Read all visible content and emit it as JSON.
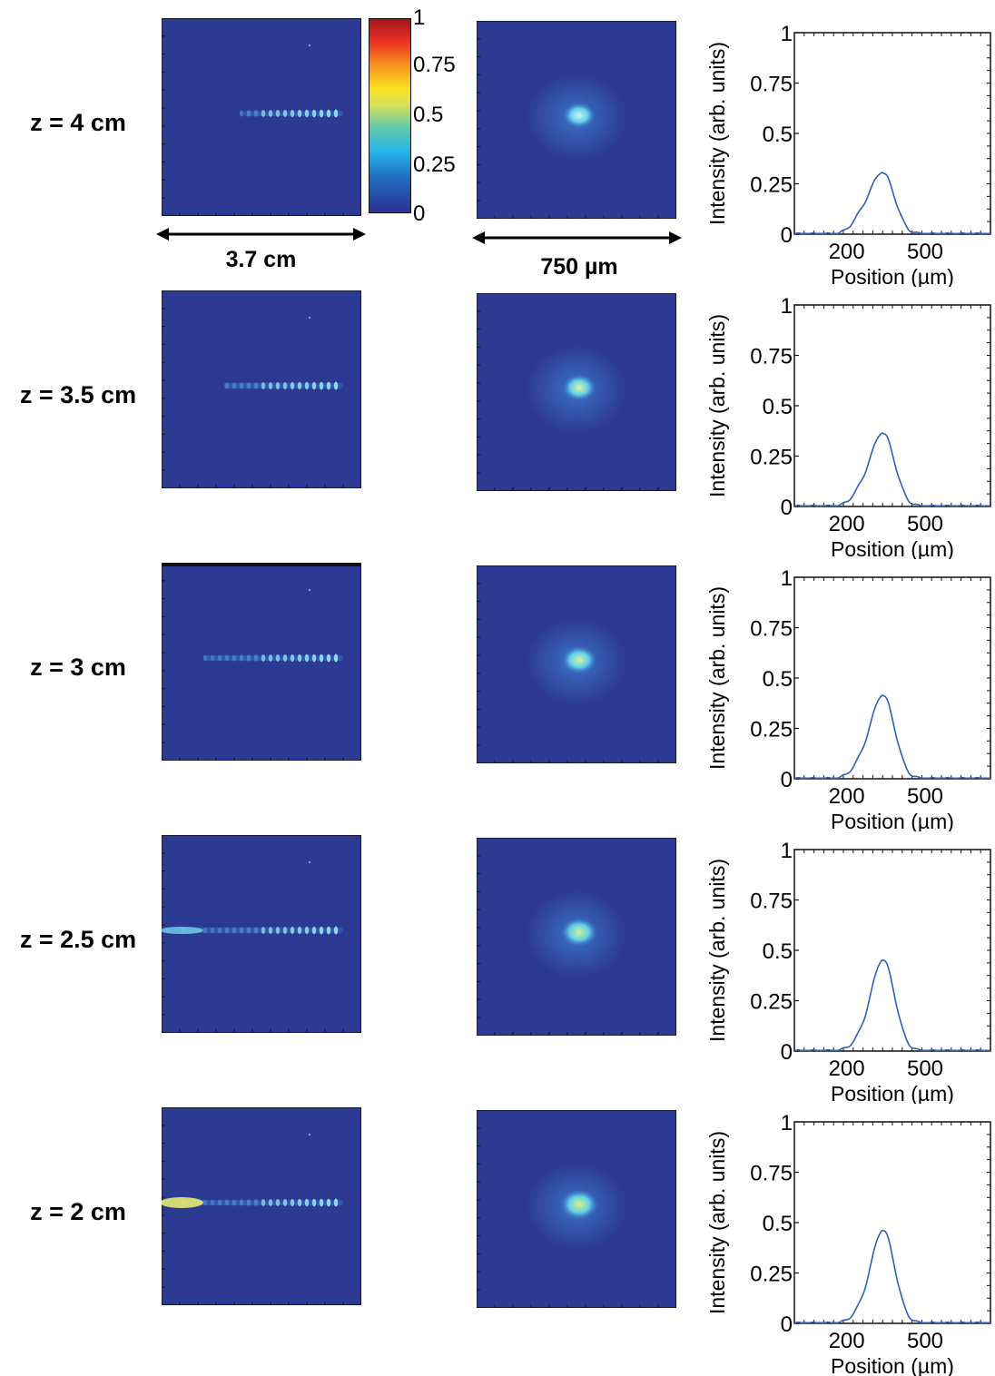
{
  "rows": [
    {
      "z": "z = 4 cm",
      "peak": 0.3,
      "shoulder": 0.08,
      "bright": "#cfeffa",
      "spot": 0.55
    },
    {
      "z": "z = 3.5 cm",
      "peak": 0.36,
      "shoulder": 0.07,
      "bright": "#e6f5a0",
      "spot": 0.6
    },
    {
      "z": "z = 3 cm",
      "peak": 0.41,
      "shoulder": 0.07,
      "bright": "#d8f0a8",
      "spot": 0.66
    },
    {
      "z": "z = 2.5 cm",
      "peak": 0.45,
      "shoulder": 0.05,
      "bright": "#d8ee98",
      "spot": 0.72
    },
    {
      "z": "z = 2 cm",
      "peak": 0.46,
      "shoulder": 0.05,
      "bright": "#e2ed8a",
      "spot": 0.78
    }
  ],
  "colorbar": {
    "ticks": [
      "1",
      "0.75",
      "0.5",
      "0.25",
      "0"
    ]
  },
  "scale_labels": {
    "left": "3.7 cm",
    "middle": "750 µm"
  },
  "chart_data": {
    "type": "line",
    "xlabel": "Position (µm)",
    "ylabel": "Intensity (arb. units)",
    "xticks": [
      "200",
      "500"
    ],
    "yticks": [
      "0",
      "0.25",
      "0.5",
      "0.75",
      "1"
    ],
    "ylim": [
      0,
      1
    ],
    "peak_position": 340,
    "series": [
      {
        "values": [
          0.3
        ]
      },
      {
        "values": [
          0.36
        ]
      },
      {
        "values": [
          0.41
        ]
      },
      {
        "values": [
          0.45
        ]
      },
      {
        "values": [
          0.46
        ]
      }
    ]
  },
  "colors": {
    "background": "#2d3a93",
    "line": "#2f5fbf"
  }
}
